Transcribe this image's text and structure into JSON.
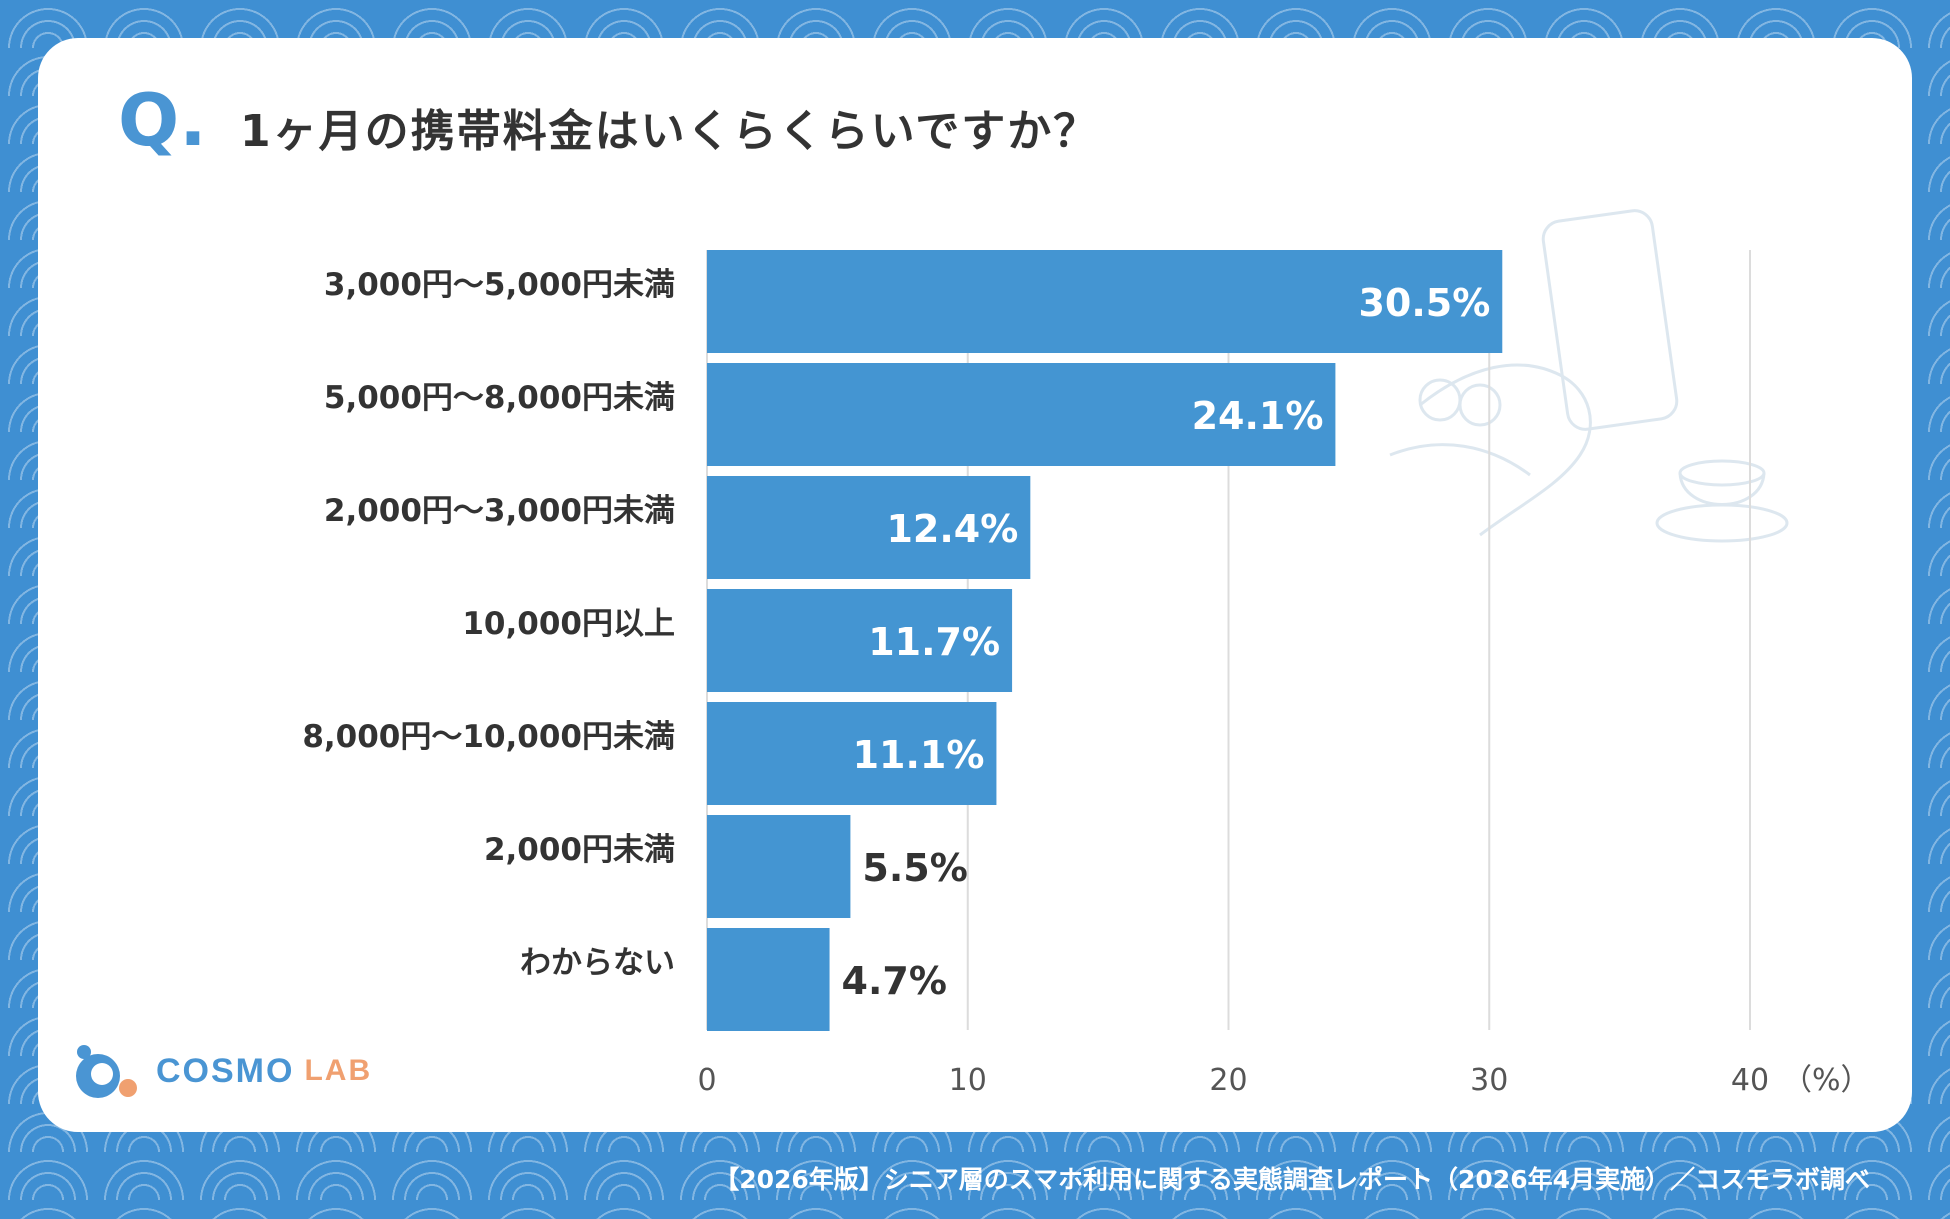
{
  "question": {
    "mark": "Q.",
    "title": "1ヶ月の携帯料金はいくらくらいですか？"
  },
  "chart_data": {
    "type": "bar",
    "orientation": "horizontal",
    "title": "1ヶ月の携帯料金はいくらくらいですか？",
    "categories": [
      "3,000円～5,000円未満",
      "5,000円～8,000円未満",
      "2,000円～3,000円未満",
      "10,000円以上",
      "8,000円～10,000円未満",
      "2,000円未満",
      "わからない"
    ],
    "values": [
      30.5,
      24.1,
      12.4,
      11.7,
      11.1,
      5.5,
      4.7
    ],
    "value_labels": [
      "30.5%",
      "24.1%",
      "12.4%",
      "11.7%",
      "11.1%",
      "5.5%",
      "4.7%"
    ],
    "xlim": [
      0,
      40
    ],
    "xticks": [
      0,
      10,
      20,
      30,
      40
    ],
    "xticks_text": [
      "0",
      "10",
      "20",
      "30",
      "40"
    ],
    "xlabel": "（%）",
    "bar_color": "#4495d2",
    "grid": true
  },
  "logo": {
    "main": "COSMO",
    "sub": "LAB"
  },
  "footer": "【2026年版】シニア層のスマホ利用に関する実態調査レポート（2026年4月実施）／コスモラボ調べ"
}
